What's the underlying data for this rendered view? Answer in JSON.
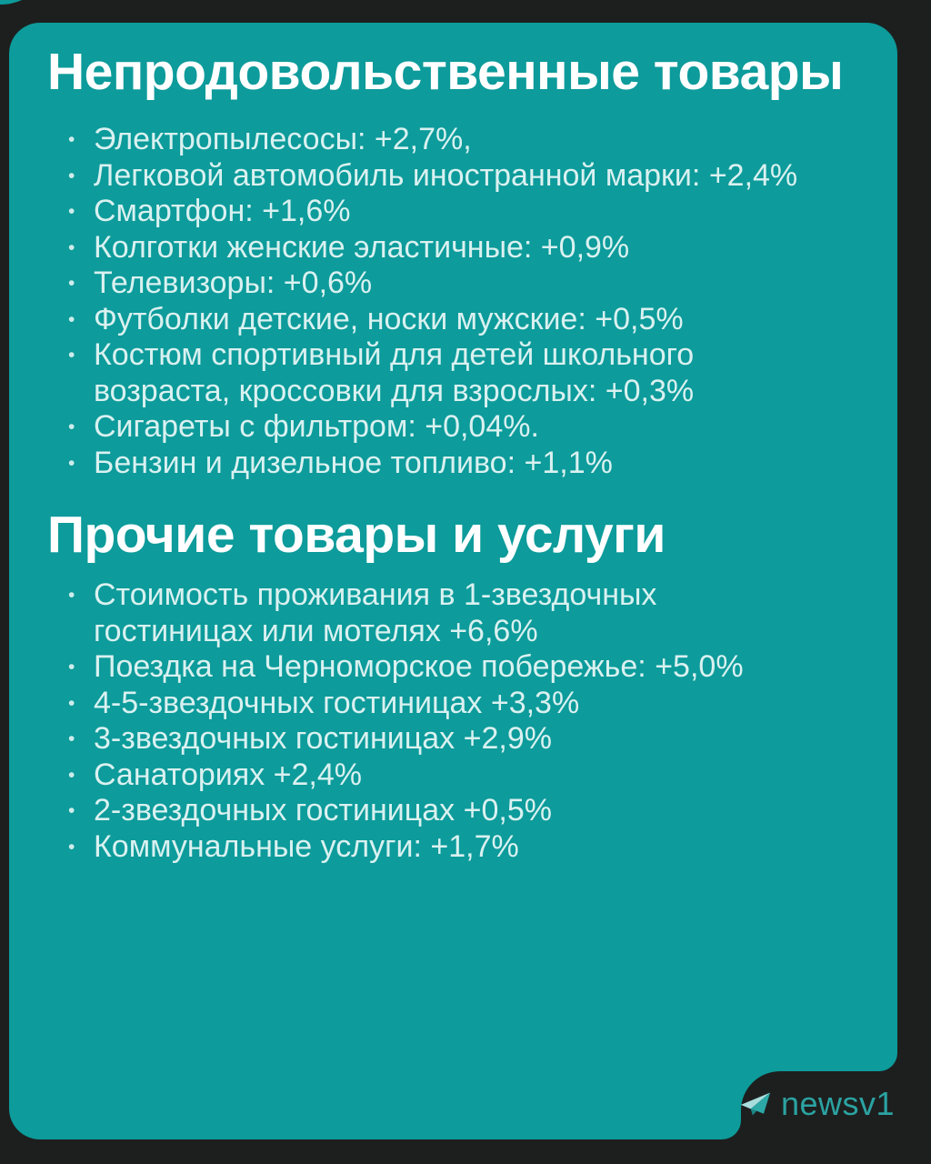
{
  "page": {
    "background_color": "#1d1f1f"
  },
  "card": {
    "color": "#0d9b9b",
    "remnant_color": "#0d9b9b"
  },
  "text_colors": {
    "heading": "#ffffff",
    "body": "#d9f1f0"
  },
  "list_bullet": "•",
  "sections": [
    {
      "title": "Непродовольственные товары",
      "items": [
        "Электропылесосы: +2,7%,",
        "Легковой автомобиль иностранной марки: +2,4%",
        "Смартфон: +1,6%",
        "Колготки женские эластичные: +0,9%",
        "Телевизоры: +0,6%",
        "Футболки детские, носки мужские: +0,5%",
        "Костюм спортивный для детей школьного\nвозраста, кроссовки для взрослых: +0,3%",
        "Сигареты с фильтром: +0,04%.",
        "Бензин и дизельное топливо: +1,1%"
      ]
    },
    {
      "title": "Прочие товары и услуги",
      "items": [
        "Стоимость проживания в 1-звездочных\nгостиницах или мотелях +6,6%",
        "Поездка на Черноморское побережье: +5,0%",
        "4-5-звездочных гостиницах +3,3%",
        "3-звездочных гостиницах +2,9%",
        "Санаториях +2,4%",
        "2-звездочных гостиницах +0,5%",
        "Коммунальные услуги: +1,7%"
      ]
    }
  ],
  "watermark": {
    "label": "newsv1",
    "icon": "telegram-plane-icon",
    "text_color": "#2ba3a2",
    "badge_color": "#1d1f1f"
  }
}
